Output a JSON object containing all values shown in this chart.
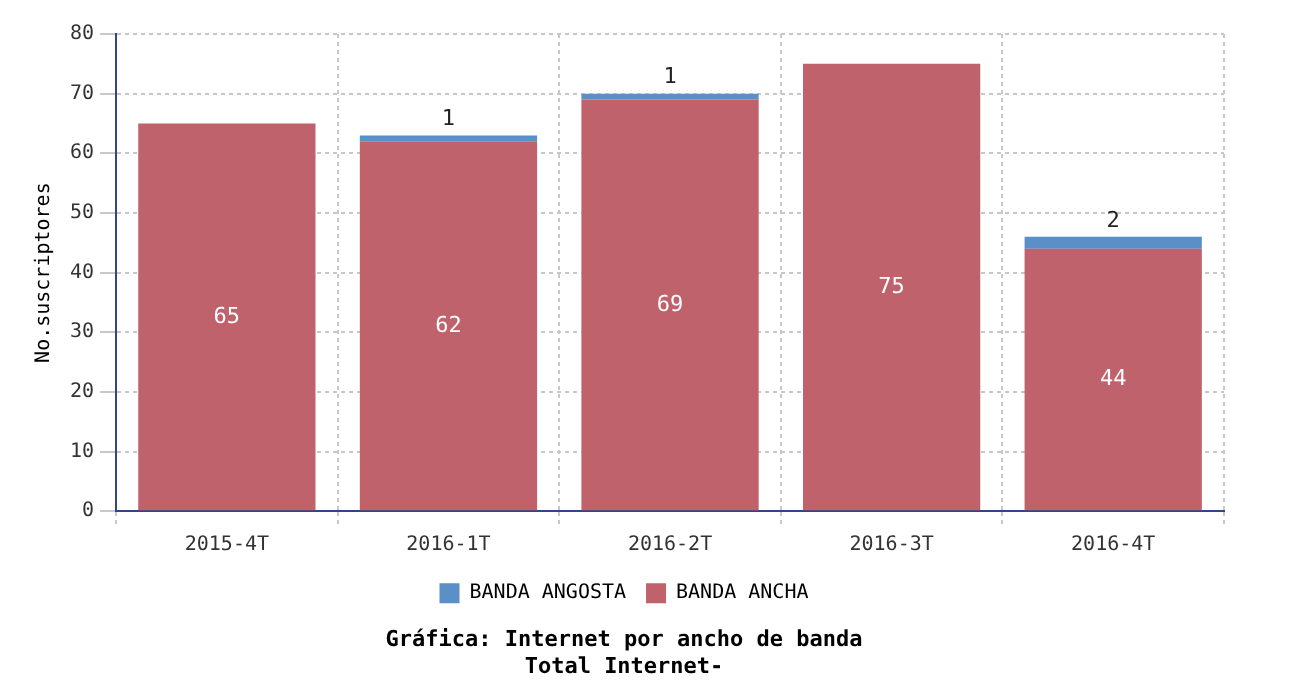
{
  "chart_data": {
    "type": "bar",
    "title": "Gráfica: Internet por ancho de banda",
    "subtitle": "Total Internet-",
    "ylabel": "No.suscriptores",
    "categories": [
      "2015-4T",
      "2016-1T",
      "2016-2T",
      "2016-3T",
      "2016-4T"
    ],
    "stacked": true,
    "series": [
      {
        "name": "BANDA ANCHA",
        "color": "#c0626b",
        "values": [
          65,
          62,
          69,
          75,
          44
        ]
      },
      {
        "name": "BANDA ANGOSTA",
        "color": "#5b8fc7",
        "values": [
          null,
          1,
          1,
          null,
          2
        ]
      }
    ],
    "ylim": [
      0,
      80
    ],
    "yticks": [
      0,
      10,
      20,
      30,
      40,
      50,
      60,
      70,
      80
    ],
    "grid": true,
    "legend": "bottom",
    "data_labels": true
  }
}
